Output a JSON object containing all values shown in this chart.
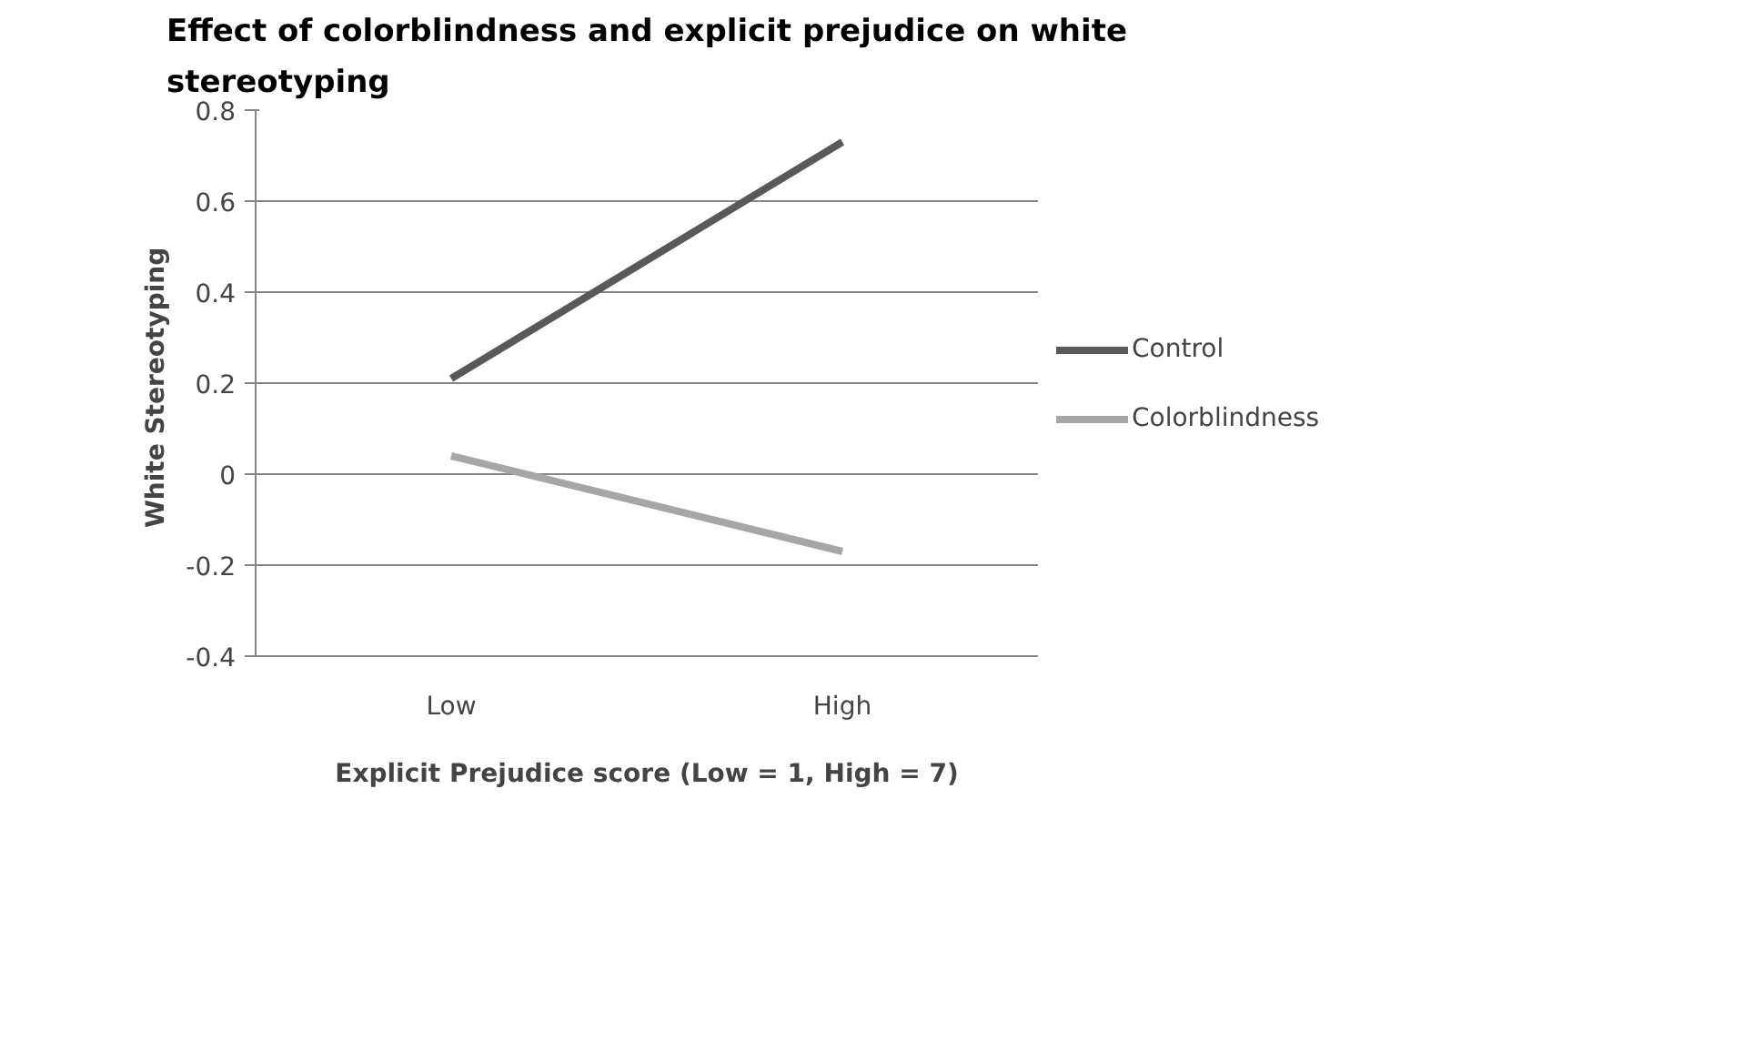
{
  "chart_data": {
    "type": "line",
    "title": "Effect of colorblindness and explicit prejudice on white stereotyping",
    "xlabel": "Explicit Prejudice score (Low = 1, High = 7)",
    "ylabel": "White  Stereotyping",
    "categories": [
      "Low",
      "High"
    ],
    "series": [
      {
        "name": "Control",
        "color": "#595959",
        "values": [
          0.21,
          0.73
        ]
      },
      {
        "name": "Colorblindness",
        "color": "#a6a6a6",
        "values": [
          0.04,
          -0.17
        ]
      }
    ],
    "ylim": [
      -0.4,
      0.8
    ],
    "yticks": [
      -0.4,
      -0.2,
      0,
      0.2,
      0.4,
      0.6,
      0.8
    ],
    "grid": "y",
    "legend": "right",
    "marker": "none",
    "line_style": "solid"
  }
}
